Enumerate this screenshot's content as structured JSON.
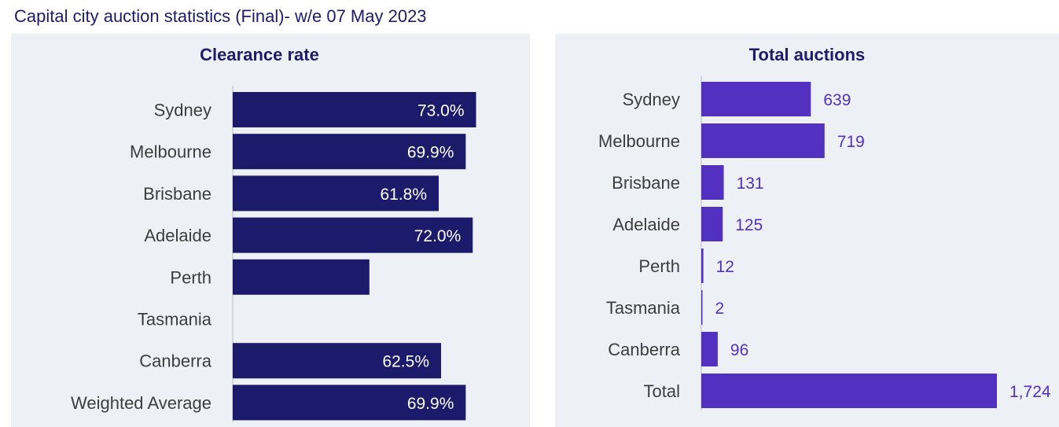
{
  "title": "Capital city auction statistics (Final)- w/e 07 May 2023",
  "colors": {
    "clearance_bar": "#1c1a6a",
    "auctions_bar": "#5230c0",
    "panel_bg": "#edf1f5",
    "title": "#1e1b6b"
  },
  "chart_data": [
    {
      "type": "bar",
      "orientation": "horizontal",
      "title": "Clearance rate",
      "categories": [
        "Sydney",
        "Melbourne",
        "Brisbane",
        "Adelaide",
        "Perth",
        "Tasmania",
        "Canberra",
        "Weighted Average"
      ],
      "values": [
        73.0,
        69.9,
        61.8,
        72.0,
        41.0,
        null,
        62.5,
        69.9
      ],
      "data_labels": [
        "73.0%",
        "69.9%",
        "61.8%",
        "72.0%",
        "",
        "",
        "62.5%",
        "69.9%"
      ],
      "xlim": [
        0,
        100
      ],
      "grid": false,
      "legend": "none"
    },
    {
      "type": "bar",
      "orientation": "horizontal",
      "title": "Total auctions",
      "categories": [
        "Sydney",
        "Melbourne",
        "Brisbane",
        "Adelaide",
        "Perth",
        "Tasmania",
        "Canberra",
        "Total"
      ],
      "values": [
        639,
        719,
        131,
        125,
        12,
        2,
        96,
        1724
      ],
      "data_labels": [
        "639",
        "719",
        "131",
        "125",
        "12",
        "2",
        "96",
        "1,724"
      ],
      "xlim": [
        0,
        1724
      ],
      "grid": false,
      "legend": "none"
    }
  ]
}
